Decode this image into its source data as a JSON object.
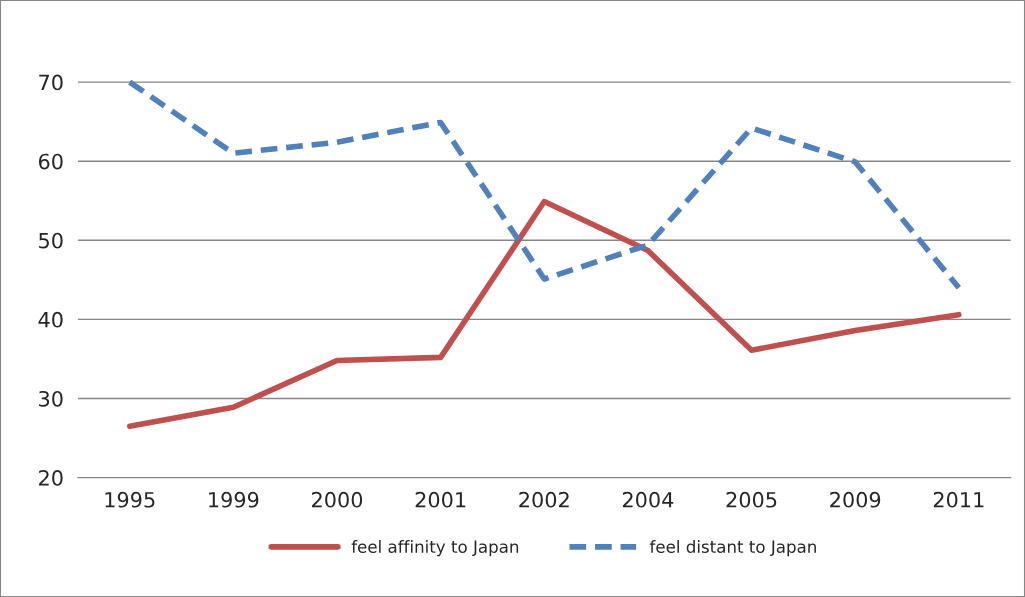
{
  "chart_data": {
    "type": "line",
    "categories": [
      "1995",
      "1999",
      "2000",
      "2001",
      "2002",
      "2004",
      "2005",
      "2009",
      "2011"
    ],
    "series": [
      {
        "name": "feel affinity to Japan",
        "color": "#c0504d",
        "line_style": "solid",
        "values": [
          26.5,
          28.9,
          34.8,
          35.2,
          54.9,
          48.7,
          36.1,
          38.6,
          40.6
        ]
      },
      {
        "name": "feel distant to Japan",
        "color": "#4f81bd",
        "line_style": "dashed",
        "values": [
          70,
          61,
          62.4,
          64.9,
          45.1,
          49.4,
          64.2,
          59.9,
          44
        ]
      }
    ],
    "ylim": [
      20,
      80
    ],
    "yticks": [
      20,
      30,
      40,
      50,
      60,
      70
    ],
    "grid": "y",
    "legend": "bottom",
    "marker": "none"
  }
}
